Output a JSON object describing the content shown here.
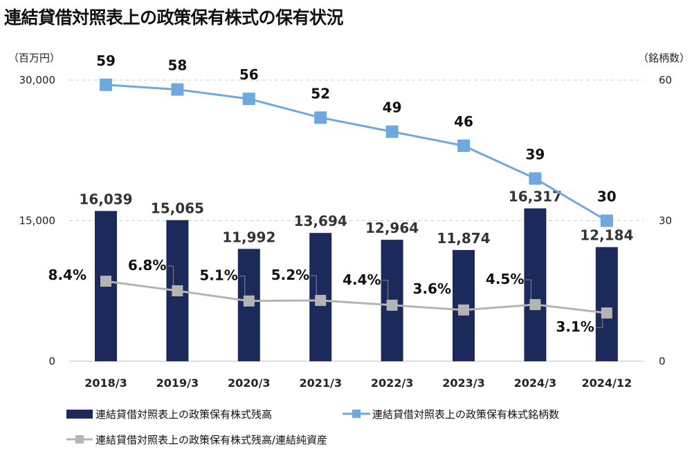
{
  "title": "連結貸借対照表上の政策保有株式の保有状況",
  "chart_data": {
    "type": "bar+line",
    "title": "連結貸借対照表上の政策保有株式の保有状況",
    "categories": [
      "2018/3",
      "2019/3",
      "2020/3",
      "2021/3",
      "2022/3",
      "2023/3",
      "2024/3",
      "2024/12"
    ],
    "left_axis": {
      "unit": "（百万円）",
      "ticks": [
        "0",
        "15,000",
        "30,000"
      ],
      "range": [
        0,
        30000
      ]
    },
    "right_axis": {
      "unit": "（銘柄数）",
      "ticks": [
        "0",
        "30",
        "60"
      ],
      "range": [
        0,
        60
      ]
    },
    "grid": "dashed horizontal",
    "legend_position": "bottom",
    "series": [
      {
        "name": "連結貸借対照表上の政策保有株式残高",
        "type": "bar",
        "axis": "left",
        "color": "#1b2a5a",
        "values": [
          16039,
          15065,
          11992,
          13694,
          12964,
          11874,
          16317,
          12184
        ],
        "labels": [
          "16,039",
          "15,065",
          "11,992",
          "13,694",
          "12,964",
          "11,874",
          "16,317",
          "12,184"
        ]
      },
      {
        "name": "連結貸借対照表上の政策保有株式銘柄数",
        "type": "line",
        "axis": "right",
        "color": "#6fa8dc",
        "values": [
          59,
          58,
          56,
          52,
          49,
          46,
          39,
          30
        ],
        "labels": [
          "59",
          "58",
          "56",
          "52",
          "49",
          "46",
          "39",
          "30"
        ]
      },
      {
        "name": "連結貸借対照表上の政策保有株式残高/連結純資産",
        "type": "line",
        "axis": "hidden-percent",
        "color": "#b4b4b4",
        "values": [
          8.4,
          6.8,
          5.1,
          5.2,
          4.4,
          3.6,
          4.5,
          3.1
        ],
        "labels": [
          "8.4%",
          "6.8%",
          "5.1%",
          "5.2%",
          "4.4%",
          "3.6%",
          "4.5%",
          "3.1%"
        ]
      }
    ]
  }
}
